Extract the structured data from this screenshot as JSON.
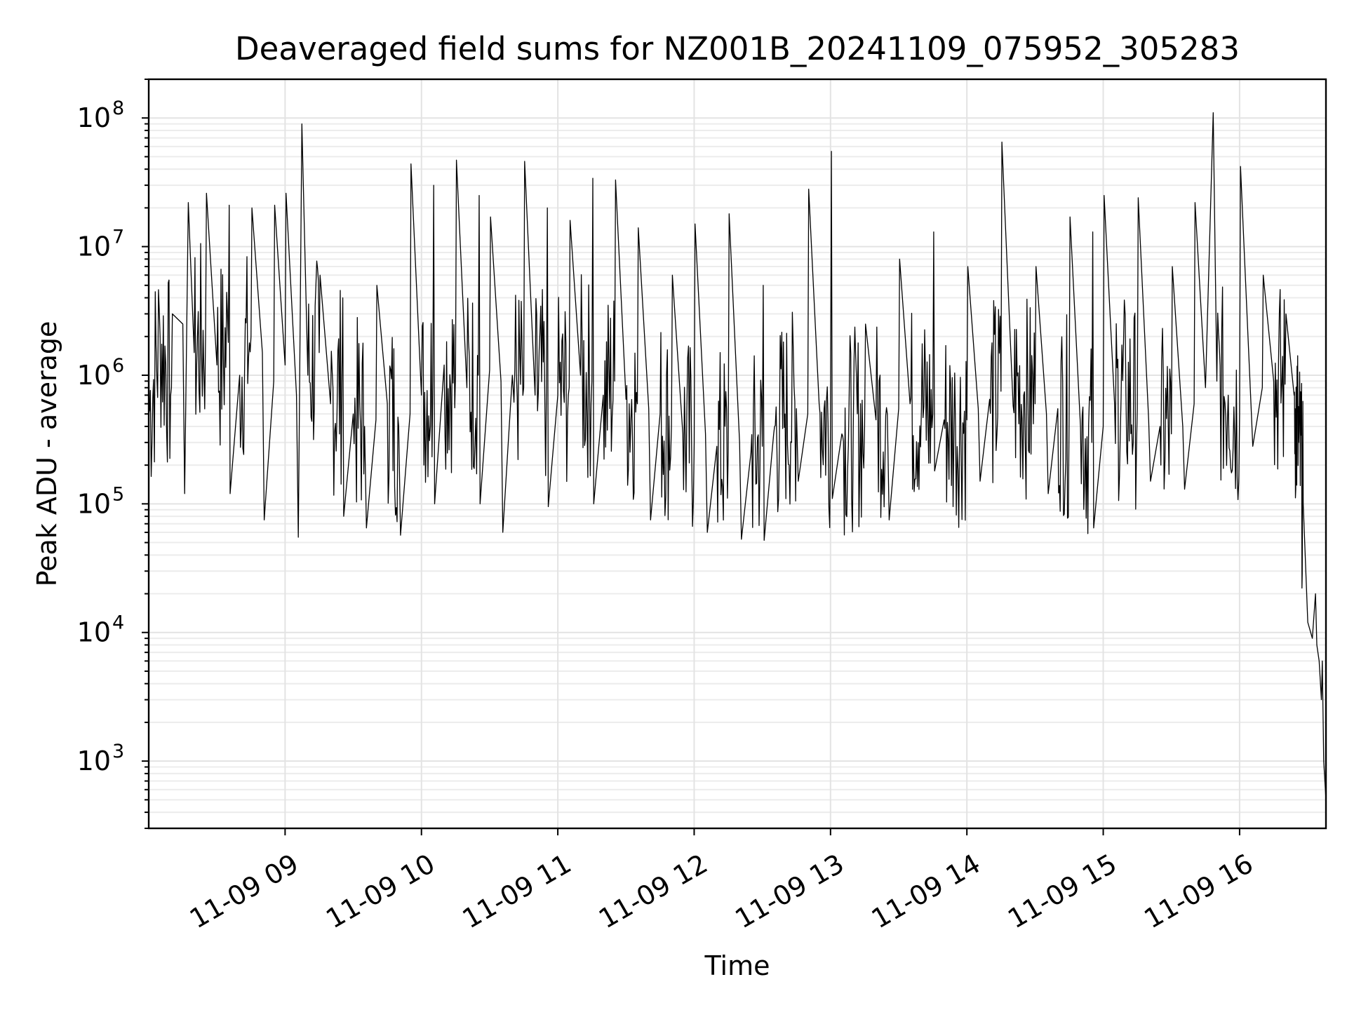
{
  "chart_data": {
    "type": "line",
    "title": "Deaveraged field sums for NZ001B_20241109_075952_305283",
    "xlabel": "Time",
    "ylabel": "Peak ADU - average",
    "yscale": "log",
    "ylim": [
      300,
      200000000
    ],
    "xlim": [
      "2024-11-09 08:00",
      "2024-11-09 16:38"
    ],
    "grid": true,
    "x_ticks": [
      "11-09 09",
      "11-09 10",
      "11-09 11",
      "11-09 12",
      "11-09 13",
      "11-09 14",
      "11-09 15",
      "11-09 16"
    ],
    "x_tick_times": [
      "2024-11-09 09:00",
      "2024-11-09 10:00",
      "2024-11-09 11:00",
      "2024-11-09 12:00",
      "2024-11-09 13:00",
      "2024-11-09 14:00",
      "2024-11-09 15:00",
      "2024-11-09 16:00"
    ],
    "y_ticks": [
      {
        "base": "10",
        "exp": "3",
        "value": 1000
      },
      {
        "base": "10",
        "exp": "4",
        "value": 10000
      },
      {
        "base": "10",
        "exp": "5",
        "value": 100000
      },
      {
        "base": "10",
        "exp": "6",
        "value": 1000000
      },
      {
        "base": "10",
        "exp": "7",
        "value": 10000000
      },
      {
        "base": "10",
        "exp": "8",
        "value": 100000000
      }
    ],
    "series": [
      {
        "color": "#000000",
        "points": [
          [
            "2024-11-09 08:00",
            500000
          ],
          [
            "2024-11-09 08:05",
            2000000
          ],
          [
            "2024-11-09 08:10",
            800000
          ],
          [
            "2024-11-09 08:15",
            2500000
          ],
          [
            "2024-11-09 08:20",
            1500000
          ],
          [
            "2024-11-09 08:25",
            2000000
          ],
          [
            "2024-11-09 08:30",
            1200000
          ],
          [
            "2024-11-09 08:35",
            1800000
          ],
          [
            "2024-11-09 08:40",
            1000000
          ],
          [
            "2024-11-09 08:45",
            2000000
          ],
          [
            "2024-11-09 08:50",
            1500000
          ],
          [
            "2024-11-09 08:55",
            900000
          ],
          [
            "2024-11-09 09:00",
            1200000
          ],
          [
            "2024-11-09 09:05",
            700000
          ],
          [
            "2024-11-09 09:10",
            1000000
          ],
          [
            "2024-11-09 09:15",
            1500000
          ],
          [
            "2024-11-09 09:20",
            600000
          ],
          [
            "2024-11-09 09:25",
            900000
          ],
          [
            "2024-11-09 09:30",
            500000
          ],
          [
            "2024-11-09 09:35",
            400000
          ],
          [
            "2024-11-09 09:40",
            450000
          ],
          [
            "2024-11-09 09:45",
            600000
          ],
          [
            "2024-11-09 09:50",
            400000
          ],
          [
            "2024-11-09 09:55",
            500000
          ],
          [
            "2024-11-09 10:00",
            700000
          ],
          [
            "2024-11-09 10:05",
            900000
          ],
          [
            "2024-11-09 10:10",
            1200000
          ],
          [
            "2024-11-09 10:15",
            1000000
          ],
          [
            "2024-11-09 10:20",
            800000
          ],
          [
            "2024-11-09 10:25",
            1000000
          ],
          [
            "2024-11-09 10:30",
            1100000
          ],
          [
            "2024-11-09 10:35",
            900000
          ],
          [
            "2024-11-09 10:40",
            1000000
          ],
          [
            "2024-11-09 10:45",
            800000
          ],
          [
            "2024-11-09 10:50",
            700000
          ],
          [
            "2024-11-09 10:55",
            800000
          ],
          [
            "2024-11-09 11:00",
            700000
          ],
          [
            "2024-11-09 11:05",
            800000
          ],
          [
            "2024-11-09 11:10",
            1000000
          ],
          [
            "2024-11-09 11:15",
            900000
          ],
          [
            "2024-11-09 11:20",
            700000
          ],
          [
            "2024-11-09 11:25",
            900000
          ],
          [
            "2024-11-09 11:30",
            650000
          ],
          [
            "2024-11-09 11:35",
            600000
          ],
          [
            "2024-11-09 11:40",
            550000
          ],
          [
            "2024-11-09 11:45",
            500000
          ],
          [
            "2024-11-09 11:50",
            400000
          ],
          [
            "2024-11-09 11:55",
            350000
          ],
          [
            "2024-11-09 12:00",
            300000
          ],
          [
            "2024-11-09 12:05",
            350000
          ],
          [
            "2024-11-09 12:10",
            280000
          ],
          [
            "2024-11-09 12:15",
            250000
          ],
          [
            "2024-11-09 12:20",
            300000
          ],
          [
            "2024-11-09 12:25",
            250000
          ],
          [
            "2024-11-09 12:30",
            280000
          ],
          [
            "2024-11-09 12:35",
            350000
          ],
          [
            "2024-11-09 12:40",
            500000
          ],
          [
            "2024-11-09 12:45",
            550000
          ],
          [
            "2024-11-09 12:50",
            500000
          ],
          [
            "2024-11-09 12:55",
            600000
          ],
          [
            "2024-11-09 13:00",
            400000
          ],
          [
            "2024-11-09 13:05",
            350000
          ],
          [
            "2024-11-09 13:10",
            380000
          ],
          [
            "2024-11-09 13:15",
            400000
          ],
          [
            "2024-11-09 13:20",
            450000
          ],
          [
            "2024-11-09 13:25",
            500000
          ],
          [
            "2024-11-09 13:30",
            550000
          ],
          [
            "2024-11-09 13:35",
            600000
          ],
          [
            "2024-11-09 13:40",
            550000
          ],
          [
            "2024-11-09 13:45",
            500000
          ],
          [
            "2024-11-09 13:50",
            450000
          ],
          [
            "2024-11-09 13:55",
            400000
          ],
          [
            "2024-11-09 14:00",
            450000
          ],
          [
            "2024-11-09 14:05",
            550000
          ],
          [
            "2024-11-09 14:10",
            650000
          ],
          [
            "2024-11-09 14:15",
            750000
          ],
          [
            "2024-11-09 14:20",
            800000
          ],
          [
            "2024-11-09 14:25",
            700000
          ],
          [
            "2024-11-09 14:30",
            600000
          ],
          [
            "2024-11-09 14:35",
            500000
          ],
          [
            "2024-11-09 14:40",
            550000
          ],
          [
            "2024-11-09 14:45",
            450000
          ],
          [
            "2024-11-09 14:50",
            400000
          ],
          [
            "2024-11-09 14:55",
            300000
          ],
          [
            "2024-11-09 15:00",
            400000
          ],
          [
            "2024-11-09 15:05",
            600000
          ],
          [
            "2024-11-09 15:10",
            700000
          ],
          [
            "2024-11-09 15:15",
            550000
          ],
          [
            "2024-11-09 15:20",
            450000
          ],
          [
            "2024-11-09 15:25",
            400000
          ],
          [
            "2024-11-09 15:30",
            350000
          ],
          [
            "2024-11-09 15:35",
            400000
          ],
          [
            "2024-11-09 15:40",
            600000
          ],
          [
            "2024-11-09 15:45",
            800000
          ],
          [
            "2024-11-09 15:50",
            900000
          ],
          [
            "2024-11-09 15:55",
            700000
          ],
          [
            "2024-11-09 16:00",
            500000
          ],
          [
            "2024-11-09 16:05",
            600000
          ],
          [
            "2024-11-09 16:10",
            800000
          ],
          [
            "2024-11-09 16:15",
            900000
          ],
          [
            "2024-11-09 16:20",
            850000
          ],
          [
            "2024-11-09 16:24",
            700000
          ],
          [
            "2024-11-09 16:26",
            300000
          ],
          [
            "2024-11-09 16:28",
            100000
          ],
          [
            "2024-11-09 16:30",
            12000
          ],
          [
            "2024-11-09 16:32",
            9000
          ],
          [
            "2024-11-09 16:34",
            8000
          ],
          [
            "2024-11-09 16:35",
            6000
          ],
          [
            "2024-11-09 16:36",
            3000
          ],
          [
            "2024-11-09 16:37",
            1000
          ],
          [
            "2024-11-09 16:38",
            500
          ]
        ],
        "spikes": [
          [
            "2024-11-09 08:10",
            3000000
          ],
          [
            "2024-11-09 08:17",
            22000000
          ],
          [
            "2024-11-09 08:25",
            26000000
          ],
          [
            "2024-11-09 08:35",
            21000000
          ],
          [
            "2024-11-09 08:45",
            20000000
          ],
          [
            "2024-11-09 08:55",
            21000000
          ],
          [
            "2024-11-09 09:00",
            26000000
          ],
          [
            "2024-11-09 09:07",
            90000000
          ],
          [
            "2024-11-09 09:15",
            6000000
          ],
          [
            "2024-11-09 09:25",
            4000000
          ],
          [
            "2024-11-09 09:40",
            5000000
          ],
          [
            "2024-11-09 09:55",
            44000000
          ],
          [
            "2024-11-09 10:05",
            30000000
          ],
          [
            "2024-11-09 10:15",
            47000000
          ],
          [
            "2024-11-09 10:25",
            25000000
          ],
          [
            "2024-11-09 10:30",
            17000000
          ],
          [
            "2024-11-09 10:45",
            46000000
          ],
          [
            "2024-11-09 10:55",
            20000000
          ],
          [
            "2024-11-09 11:05",
            16000000
          ],
          [
            "2024-11-09 11:15",
            34000000
          ],
          [
            "2024-11-09 11:25",
            33000000
          ],
          [
            "2024-11-09 11:35",
            14000000
          ],
          [
            "2024-11-09 11:50",
            6000000
          ],
          [
            "2024-11-09 12:00",
            15000000
          ],
          [
            "2024-11-09 12:15",
            18000000
          ],
          [
            "2024-11-09 12:30",
            5000000
          ],
          [
            "2024-11-09 12:50",
            28000000
          ],
          [
            "2024-11-09 13:00",
            55000000
          ],
          [
            "2024-11-09 13:15",
            2500000
          ],
          [
            "2024-11-09 13:30",
            8000000
          ],
          [
            "2024-11-09 13:45",
            13000000
          ],
          [
            "2024-11-09 14:00",
            7000000
          ],
          [
            "2024-11-09 14:15",
            65000000
          ],
          [
            "2024-11-09 14:30",
            7000000
          ],
          [
            "2024-11-09 14:45",
            17000000
          ],
          [
            "2024-11-09 14:55",
            13000000
          ],
          [
            "2024-11-09 15:00",
            25000000
          ],
          [
            "2024-11-09 15:15",
            24000000
          ],
          [
            "2024-11-09 15:30",
            7000000
          ],
          [
            "2024-11-09 15:40",
            22000000
          ],
          [
            "2024-11-09 15:48",
            110000000
          ],
          [
            "2024-11-09 16:00",
            42000000
          ],
          [
            "2024-11-09 16:10",
            6000000
          ],
          [
            "2024-11-09 16:20",
            3000000
          ],
          [
            "2024-11-09 16:33",
            20000
          ],
          [
            "2024-11-09 16:36",
            6000
          ]
        ],
        "dips": [
          [
            "2024-11-09 08:15",
            120000
          ],
          [
            "2024-11-09 08:35",
            120000
          ],
          [
            "2024-11-09 08:50",
            75000
          ],
          [
            "2024-11-09 09:05",
            55000
          ],
          [
            "2024-11-09 09:25",
            80000
          ],
          [
            "2024-11-09 09:35",
            65000
          ],
          [
            "2024-11-09 09:50",
            57000
          ],
          [
            "2024-11-09 10:05",
            100000
          ],
          [
            "2024-11-09 10:25",
            100000
          ],
          [
            "2024-11-09 10:35",
            60000
          ],
          [
            "2024-11-09 10:55",
            95000
          ],
          [
            "2024-11-09 11:15",
            100000
          ],
          [
            "2024-11-09 11:40",
            75000
          ],
          [
            "2024-11-09 12:05",
            60000
          ],
          [
            "2024-11-09 12:20",
            53000
          ],
          [
            "2024-11-09 12:30",
            52000
          ],
          [
            "2024-11-09 12:45",
            150000
          ],
          [
            "2024-11-09 13:00",
            110000
          ],
          [
            "2024-11-09 13:25",
            75000
          ],
          [
            "2024-11-09 13:45",
            180000
          ],
          [
            "2024-11-09 14:05",
            150000
          ],
          [
            "2024-11-09 14:35",
            120000
          ],
          [
            "2024-11-09 14:55",
            65000
          ],
          [
            "2024-11-09 15:20",
            150000
          ],
          [
            "2024-11-09 15:35",
            130000
          ],
          [
            "2024-11-09 16:05",
            280000
          ]
        ]
      }
    ]
  }
}
